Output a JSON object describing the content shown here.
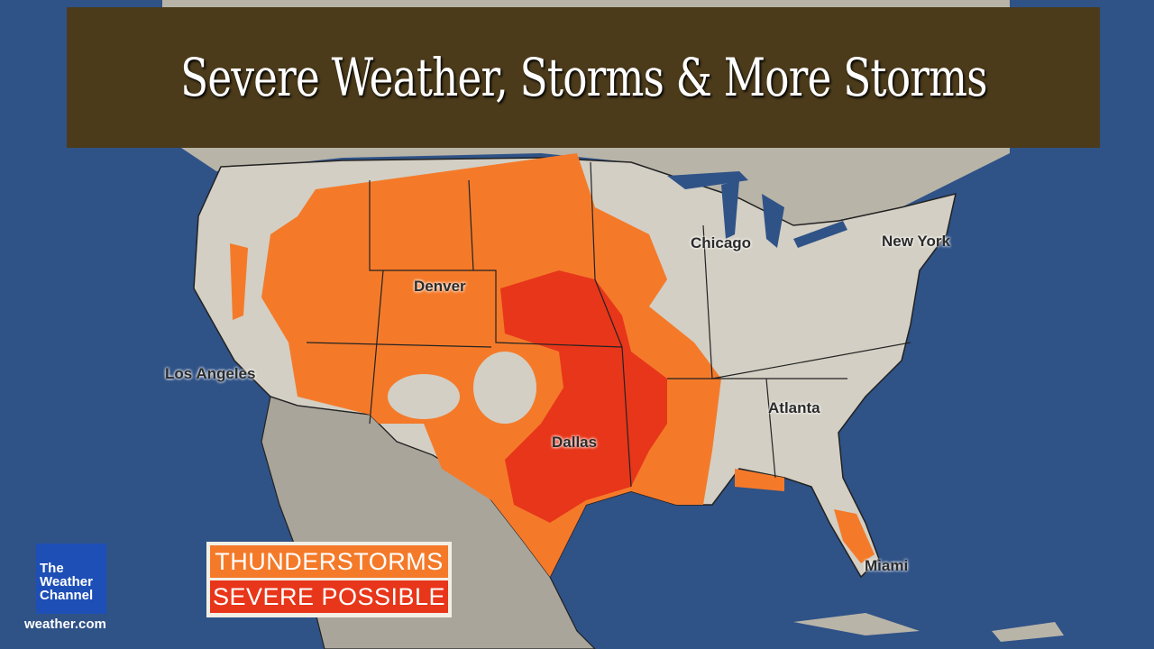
{
  "title": "Severe Weather, Storms & More Storms",
  "cities": {
    "chicago": "Chicago",
    "new_york": "New York",
    "denver": "Denver",
    "los_angeles": "Los Angeles",
    "atlanta": "Atlanta",
    "dallas": "Dallas",
    "miami": "Miami"
  },
  "legend": {
    "items": [
      {
        "label": "THUNDERSTORMS",
        "color": "#f47a2a"
      },
      {
        "label": "SEVERE POSSIBLE",
        "color": "#e8361a"
      }
    ]
  },
  "branding": {
    "logo_text": "The Weather Channel",
    "url": "weather.com"
  },
  "colors": {
    "ocean": "#2f5287",
    "land": "#d3cfc4",
    "thunderstorms": "#f47a2a",
    "severe": "#e8361a",
    "title_band": "#4b3b1b"
  }
}
